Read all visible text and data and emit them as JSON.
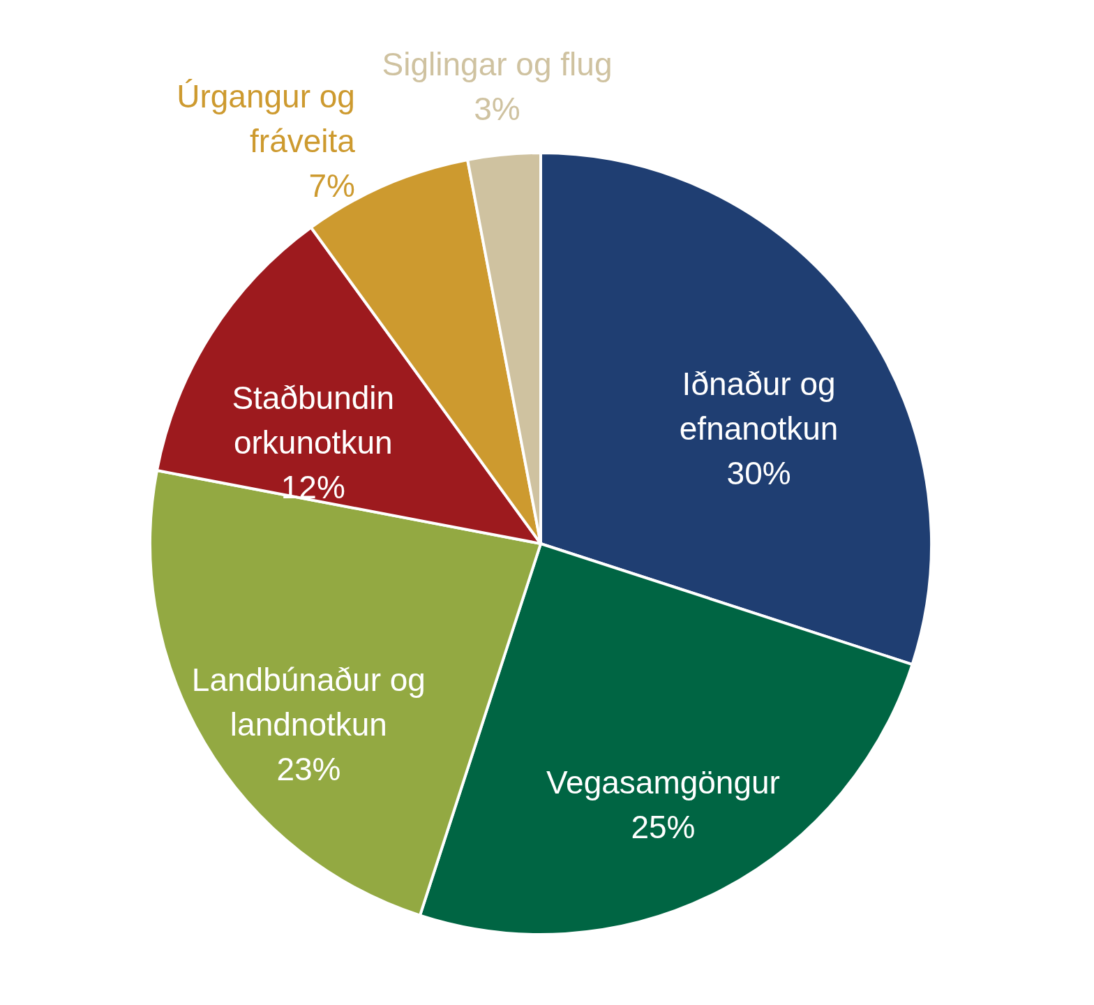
{
  "chart_data": {
    "type": "pie",
    "categories": [
      "Iðnaður og efnanotkun",
      "Vegasamgöngur",
      "Landbúnaður og landnotkun",
      "Staðbundin orkunotkun",
      "Úrgangur og fráveita",
      "Siglingar og flug"
    ],
    "values": [
      30,
      25,
      23,
      12,
      7,
      3
    ],
    "value_labels": [
      "30%",
      "25%",
      "23%",
      "12%",
      "7%",
      "3%"
    ],
    "colors": [
      "#1f3e72",
      "#006543",
      "#93a942",
      "#9d1a1e",
      "#cd9a2f",
      "#cfc2a0"
    ]
  }
}
